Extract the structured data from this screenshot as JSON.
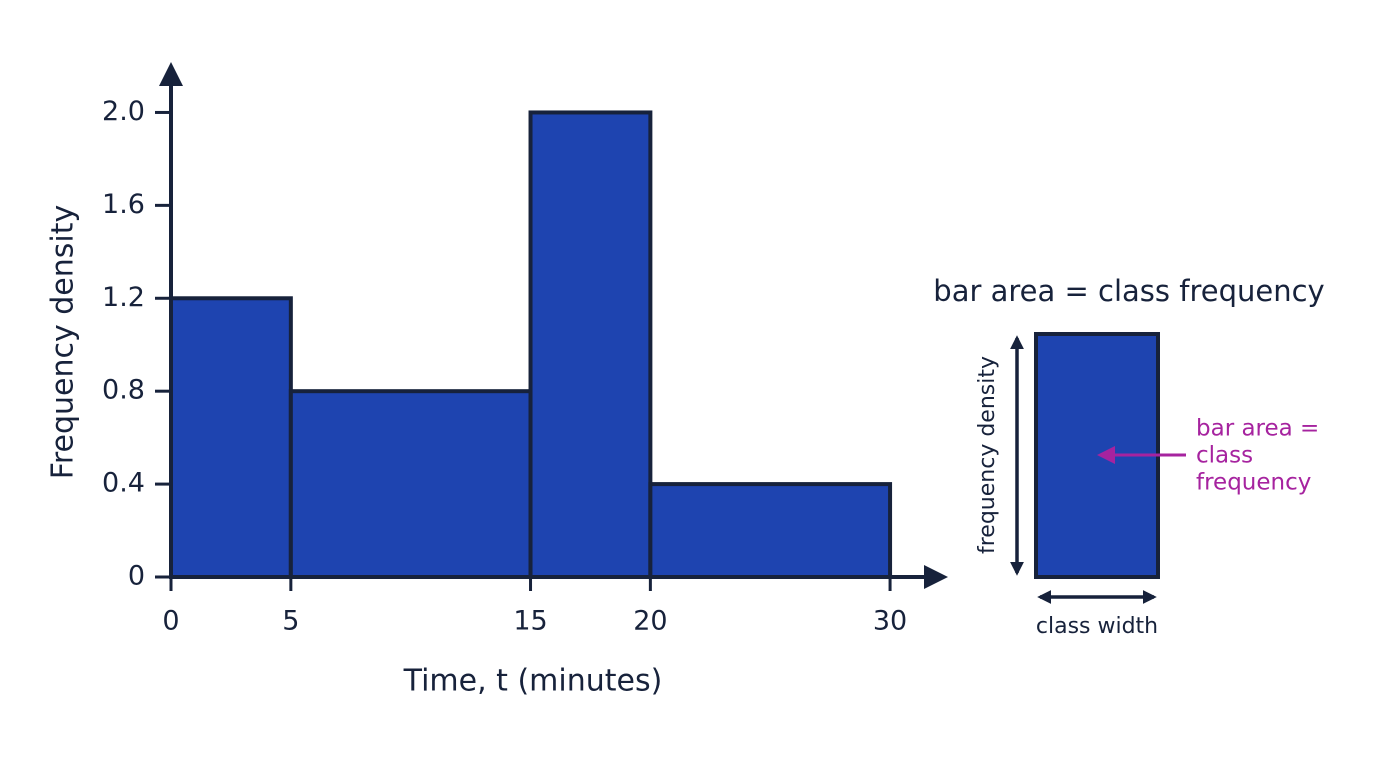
{
  "chart_data": {
    "type": "histogram",
    "x_label": "Time, t (minutes)",
    "y_label": "Frequency density",
    "bins": [
      0,
      5,
      15,
      20,
      30
    ],
    "values": [
      1.2,
      0.8,
      2.0,
      0.4
    ],
    "color": "#1e44b0",
    "edge_color": "#17223b",
    "xlim": [
      0,
      32
    ],
    "ylim": [
      0,
      2.2
    ],
    "xticks": [
      0,
      5,
      15,
      20,
      30
    ],
    "yticks": [
      0,
      0.4,
      0.8,
      1.2,
      1.6,
      {
        "value": 2,
        "label": "2.0"
      }
    ],
    "grid": false,
    "annotations": {
      "title": "bar area = class frequency",
      "height_label": "frequency density",
      "width_label": "class width",
      "callout": [
        "bar area =",
        "class",
        "frequency"
      ],
      "callout_color": "#a6239f"
    }
  }
}
